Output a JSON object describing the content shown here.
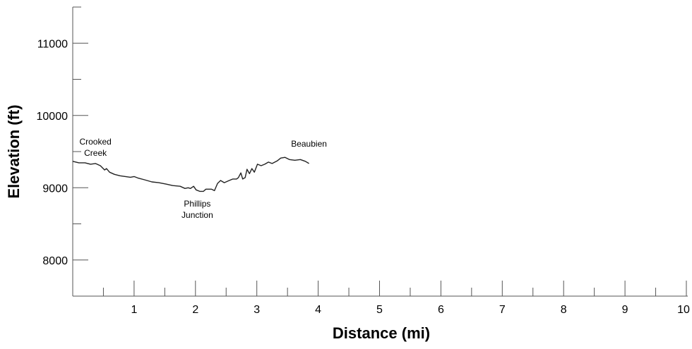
{
  "chart_data": {
    "type": "line",
    "title": "",
    "xlabel": "Distance (mi)",
    "ylabel": "Elevation (ft)",
    "xlim": [
      0,
      10
    ],
    "ylim": [
      7500,
      11500
    ],
    "x_ticks": [
      1,
      2,
      3,
      4,
      5,
      6,
      7,
      8,
      9,
      10
    ],
    "x_tick_labels": [
      "1",
      "2",
      "3",
      "4",
      "5",
      "6",
      "7",
      "8",
      "9",
      "10"
    ],
    "y_ticks": [
      8000,
      9000,
      10000,
      11000
    ],
    "y_tick_labels": [
      "8000",
      "9000",
      "10000",
      "11000"
    ],
    "grid": false,
    "line_color": "#222222",
    "series": [
      {
        "x": [
          0,
          0.1,
          0.2,
          0.29,
          0.37,
          0.45,
          0.52,
          0.55,
          0.6,
          0.68,
          0.77,
          0.86,
          0.94,
          1.0,
          1.06,
          1.17,
          1.29,
          1.4,
          1.52,
          1.63,
          1.75,
          1.83,
          1.88,
          1.92,
          1.97,
          2.01,
          2.07,
          2.13,
          2.17,
          2.22,
          2.26,
          2.31,
          2.36,
          2.41,
          2.47,
          2.55,
          2.61,
          2.67,
          2.7,
          2.74,
          2.77,
          2.81,
          2.84,
          2.88,
          2.92,
          2.96,
          3.01,
          3.07,
          3.13,
          3.19,
          3.25,
          3.33,
          3.39,
          3.46,
          3.53,
          3.62,
          3.71,
          3.79,
          3.85
        ],
        "y": [
          9365,
          9345,
          9345,
          9325,
          9335,
          9305,
          9245,
          9265,
          9215,
          9185,
          9165,
          9155,
          9145,
          9155,
          9135,
          9110,
          9080,
          9070,
          9050,
          9030,
          9020,
          8990,
          9000,
          8990,
          9020,
          8970,
          8950,
          8950,
          8980,
          8980,
          8980,
          8960,
          9060,
          9100,
          9070,
          9100,
          9120,
          9120,
          9140,
          9205,
          9120,
          9140,
          9255,
          9195,
          9265,
          9215,
          9325,
          9305,
          9325,
          9355,
          9335,
          9370,
          9410,
          9420,
          9390,
          9380,
          9390,
          9365,
          9335
        ]
      }
    ],
    "annotations": [
      {
        "lines": [
          "Crooked",
          "Creek"
        ],
        "x": 0.37,
        "y": 9600
      },
      {
        "lines": [
          "Beaubien"
        ],
        "x": 3.85,
        "y": 9570
      },
      {
        "lines": [
          "Phillips",
          "Junction"
        ],
        "x": 2.03,
        "y": 8740
      }
    ]
  }
}
